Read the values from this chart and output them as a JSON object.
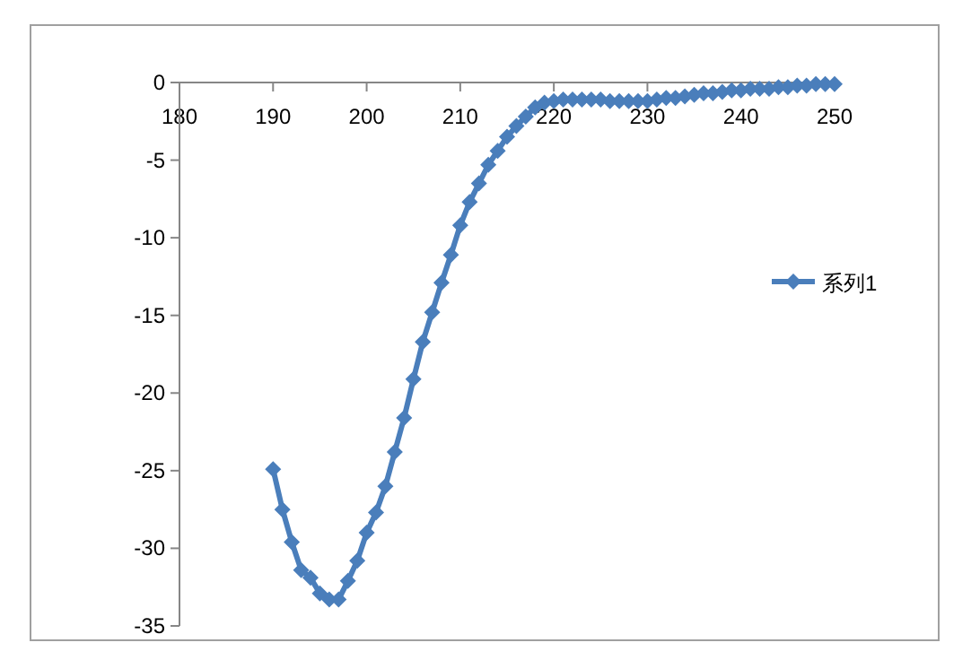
{
  "chart_data": {
    "type": "line",
    "x": [
      190,
      191,
      192,
      193,
      194,
      195,
      196,
      197,
      198,
      199,
      200,
      201,
      202,
      203,
      204,
      205,
      206,
      207,
      208,
      209,
      210,
      211,
      212,
      213,
      214,
      215,
      216,
      217,
      218,
      219,
      220,
      221,
      222,
      223,
      224,
      225,
      226,
      227,
      228,
      229,
      230,
      231,
      232,
      233,
      234,
      235,
      236,
      237,
      238,
      239,
      240,
      241,
      242,
      243,
      244,
      245,
      246,
      247,
      248,
      249,
      250
    ],
    "series": [
      {
        "name": "系列1",
        "color": "#4a7ebb",
        "values": [
          -24.9,
          -27.5,
          -29.6,
          -31.4,
          -31.9,
          -32.9,
          -33.3,
          -33.3,
          -32.1,
          -30.8,
          -29.0,
          -27.7,
          -26.0,
          -23.8,
          -21.6,
          -19.1,
          -16.7,
          -14.8,
          -12.9,
          -11.1,
          -9.2,
          -7.7,
          -6.5,
          -5.3,
          -4.4,
          -3.5,
          -2.8,
          -2.2,
          -1.6,
          -1.3,
          -1.2,
          -1.1,
          -1.1,
          -1.1,
          -1.1,
          -1.1,
          -1.2,
          -1.2,
          -1.2,
          -1.2,
          -1.2,
          -1.1,
          -1.0,
          -1.0,
          -0.9,
          -0.8,
          -0.7,
          -0.7,
          -0.6,
          -0.5,
          -0.5,
          -0.4,
          -0.4,
          -0.4,
          -0.3,
          -0.3,
          -0.2,
          -0.2,
          -0.1,
          -0.1,
          -0.1
        ]
      }
    ],
    "xlim": [
      180,
      250
    ],
    "xticks": [
      180,
      190,
      200,
      210,
      220,
      230,
      240,
      250
    ],
    "ylim": [
      -35,
      0
    ],
    "yticks": [
      0,
      -5,
      -10,
      -15,
      -20,
      -25,
      -30,
      -35
    ],
    "marker": "diamond",
    "line_style": "solid",
    "grid": false,
    "legend": "right"
  }
}
